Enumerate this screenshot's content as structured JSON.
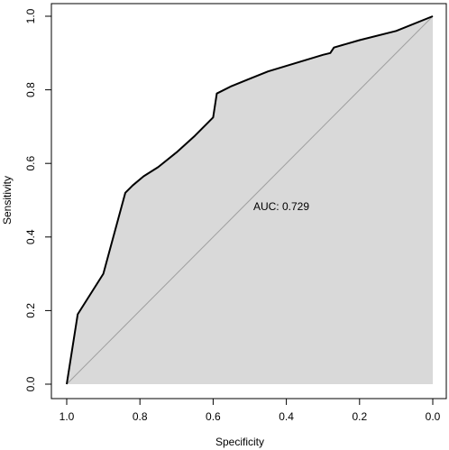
{
  "chart_data": {
    "type": "line",
    "xlabel": "Specificity",
    "ylabel": "Sensitivity",
    "xlim": [
      1.0,
      0.0
    ],
    "ylim": [
      0.0,
      1.0
    ],
    "x_reversed": true,
    "xticks": [
      "1.0",
      "0.8",
      "0.6",
      "0.4",
      "0.2",
      "0.0"
    ],
    "yticks": [
      "0.0",
      "0.2",
      "0.4",
      "0.6",
      "0.8",
      "1.0"
    ],
    "grid": false,
    "legend": "none",
    "annotation": "AUC: 0.729",
    "fill_color": "#d9d9d9",
    "line_color": "#000000",
    "reference_line_color": "#a0a0a0",
    "roc": {
      "specificity": [
        1.0,
        0.97,
        0.9,
        0.84,
        0.82,
        0.79,
        0.75,
        0.7,
        0.65,
        0.6,
        0.59,
        0.55,
        0.5,
        0.45,
        0.4,
        0.35,
        0.3,
        0.28,
        0.27,
        0.2,
        0.1,
        0.0
      ],
      "sensitivity": [
        0.0,
        0.19,
        0.3,
        0.52,
        0.54,
        0.565,
        0.59,
        0.63,
        0.675,
        0.725,
        0.79,
        0.81,
        0.83,
        0.85,
        0.865,
        0.88,
        0.895,
        0.9,
        0.915,
        0.935,
        0.96,
        1.0
      ]
    }
  }
}
